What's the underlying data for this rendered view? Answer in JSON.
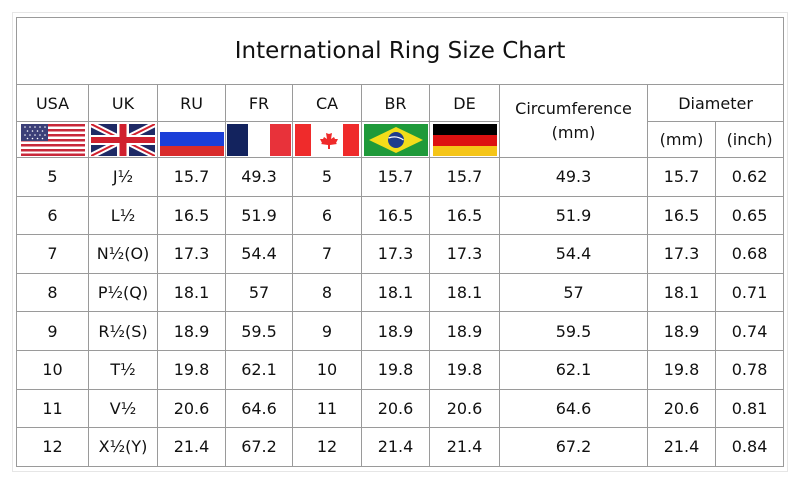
{
  "title": "International Ring Size Chart",
  "headers": {
    "usa": "USA",
    "uk": "UK",
    "ru": "RU",
    "fr": "FR",
    "ca": "CA",
    "br": "BR",
    "de": "DE",
    "circumference": "Circumference",
    "circumference_unit": "(mm)",
    "diameter": "Diameter",
    "diameter_mm": "(mm)",
    "diameter_inch": "(inch)"
  },
  "flags": [
    "usa-flag-icon",
    "uk-flag-icon",
    "russia-flag-icon",
    "france-flag-icon",
    "canada-flag-icon",
    "brazil-flag-icon",
    "germany-flag-icon"
  ],
  "rows": [
    [
      "5",
      "J½",
      "15.7",
      "49.3",
      "5",
      "15.7",
      "15.7",
      "49.3",
      "15.7",
      "0.62"
    ],
    [
      "6",
      "L½",
      "16.5",
      "51.9",
      "6",
      "16.5",
      "16.5",
      "51.9",
      "16.5",
      "0.65"
    ],
    [
      "7",
      "N½(O)",
      "17.3",
      "54.4",
      "7",
      "17.3",
      "17.3",
      "54.4",
      "17.3",
      "0.68"
    ],
    [
      "8",
      "P½(Q)",
      "18.1",
      "57",
      "8",
      "18.1",
      "18.1",
      "57",
      "18.1",
      "0.71"
    ],
    [
      "9",
      "R½(S)",
      "18.9",
      "59.5",
      "9",
      "18.9",
      "18.9",
      "59.5",
      "18.9",
      "0.74"
    ],
    [
      "10",
      "T½",
      "19.8",
      "62.1",
      "10",
      "19.8",
      "19.8",
      "62.1",
      "19.8",
      "0.78"
    ],
    [
      "11",
      "V½",
      "20.6",
      "64.6",
      "11",
      "20.6",
      "20.6",
      "64.6",
      "20.6",
      "0.81"
    ],
    [
      "12",
      "X½(Y)",
      "21.4",
      "67.2",
      "12",
      "21.4",
      "21.4",
      "67.2",
      "21.4",
      "0.84"
    ]
  ]
}
